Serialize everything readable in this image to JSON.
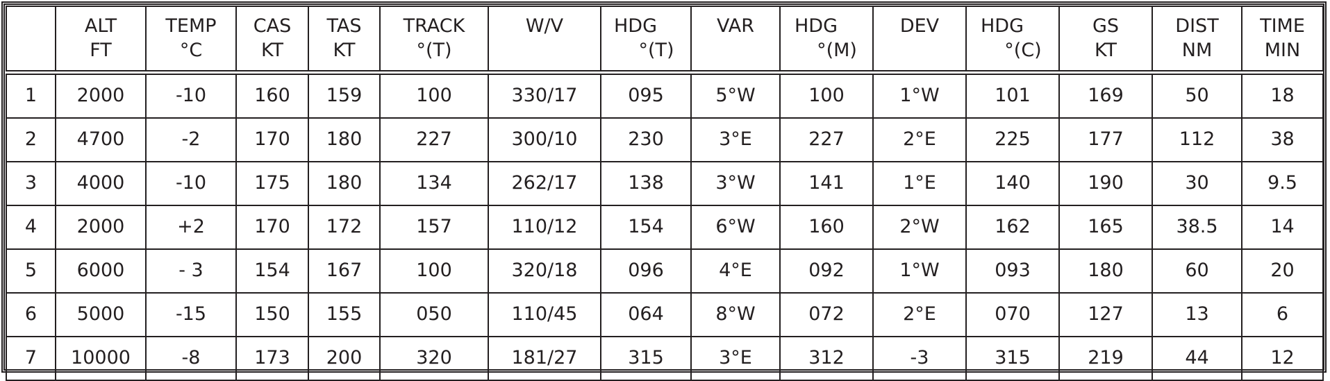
{
  "headers": [
    {
      "line1": "",
      "line2": ""
    },
    {
      "line1": "ALT",
      "line2": "FT"
    },
    {
      "line1": "TEMP",
      "line2": "°C"
    },
    {
      "line1": "CAS",
      "line2": "KT"
    },
    {
      "line1": "TAS",
      "line2": "KT"
    },
    {
      "line1": "TRACK",
      "line2": "°(T)"
    },
    {
      "line1": "W/V",
      "line2": ""
    },
    {
      "line1": "HDG",
      "line2": "°(T)"
    },
    {
      "line1": "VAR",
      "line2": ""
    },
    {
      "line1": "HDG",
      "line2": "°(M)"
    },
    {
      "line1": "DEV",
      "line2": ""
    },
    {
      "line1": "HDG",
      "line2": "°(C)"
    },
    {
      "line1": "GS",
      "line2": "KT"
    },
    {
      "line1": "DIST",
      "line2": "NM"
    },
    {
      "line1": "TIME",
      "line2": "MIN"
    }
  ],
  "rows": [
    [
      "1",
      "2000",
      "-10",
      "160",
      "159",
      "100",
      "330/17",
      "095",
      "5°W",
      "100",
      "1°W",
      "101",
      "169",
      "50",
      "18"
    ],
    [
      "2",
      "4700",
      "-2",
      "170",
      "180",
      "227",
      "300/10",
      "230",
      "3°E",
      "227",
      "2°E",
      "225",
      "177",
      "112",
      "38"
    ],
    [
      "3",
      "4000",
      "-10",
      "175",
      "180",
      "134",
      "262/17",
      "138",
      "3°W",
      "141",
      "1°E",
      "140",
      "190",
      "30",
      "9.5"
    ],
    [
      "4",
      "2000",
      "+2",
      "170",
      "172",
      "157",
      "110/12",
      "154",
      "6°W",
      "160",
      "2°W",
      "162",
      "165",
      "38.5",
      "14"
    ],
    [
      "5",
      "6000",
      "- 3",
      "154",
      "167",
      "100",
      "320/18",
      "096",
      "4°E",
      "092",
      "1°W",
      "093",
      "180",
      "60",
      "20"
    ],
    [
      "6",
      "5000",
      "-15",
      "150",
      "155",
      "050",
      "110/45",
      "064",
      "8°W",
      "072",
      "2°E",
      "070",
      "127",
      "13",
      "6"
    ],
    [
      "7",
      "10000",
      "-8",
      "173",
      "200",
      "320",
      "181/27",
      "315",
      "3°E",
      "312",
      "-3",
      "315",
      "219",
      "44",
      "12"
    ]
  ]
}
